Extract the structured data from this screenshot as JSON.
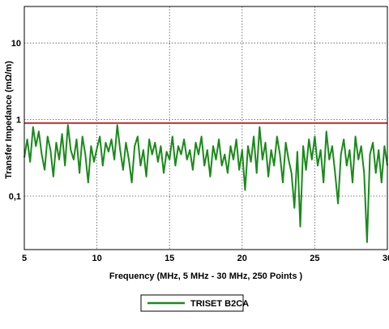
{
  "chart_data": {
    "type": "line",
    "xlabel": "Frequency (MHz, 5 MHz - 30 MHz, 250 Points )",
    "ylabel": "Transfer Impedance (mΩ/m)",
    "xlim": [
      5,
      30
    ],
    "ylim": [
      0.02,
      30
    ],
    "yscale": "log",
    "grid": true,
    "legend_position": "bottom-center",
    "x_ticks": [
      5,
      10,
      15,
      20,
      25,
      30
    ],
    "x_tick_labels": [
      "5",
      "10",
      "15",
      "20",
      "25",
      "30"
    ],
    "y_ticks": [
      0.1,
      1,
      10
    ],
    "y_tick_labels": [
      "0,1",
      "1",
      "10"
    ],
    "reference_line": {
      "y": 0.9,
      "color": "#d12a2a"
    },
    "series": [
      {
        "name": "TRISET B2CA",
        "color": "#1a8a1a",
        "x": [
          5.0,
          5.2,
          5.4,
          5.6,
          5.8,
          6.0,
          6.2,
          6.4,
          6.6,
          6.8,
          7.0,
          7.2,
          7.4,
          7.6,
          7.8,
          8.0,
          8.2,
          8.4,
          8.6,
          8.8,
          9.0,
          9.2,
          9.4,
          9.6,
          9.8,
          10.0,
          10.2,
          10.4,
          10.6,
          10.8,
          11.0,
          11.2,
          11.4,
          11.6,
          11.8,
          12.0,
          12.2,
          12.4,
          12.6,
          12.8,
          13.0,
          13.2,
          13.4,
          13.6,
          13.8,
          14.0,
          14.2,
          14.4,
          14.6,
          14.8,
          15.0,
          15.2,
          15.4,
          15.6,
          15.8,
          16.0,
          16.2,
          16.4,
          16.6,
          16.8,
          17.0,
          17.2,
          17.4,
          17.6,
          17.8,
          18.0,
          18.2,
          18.4,
          18.6,
          18.8,
          19.0,
          19.2,
          19.4,
          19.6,
          19.8,
          20.0,
          20.2,
          20.4,
          20.6,
          20.8,
          21.0,
          21.2,
          21.4,
          21.6,
          21.8,
          22.0,
          22.2,
          22.4,
          22.6,
          22.8,
          23.0,
          23.2,
          23.4,
          23.6,
          23.8,
          24.0,
          24.2,
          24.4,
          24.6,
          24.8,
          25.0,
          25.2,
          25.4,
          25.6,
          25.8,
          26.0,
          26.2,
          26.4,
          26.6,
          26.8,
          27.0,
          27.2,
          27.4,
          27.6,
          27.8,
          28.0,
          28.2,
          28.4,
          28.6,
          28.8,
          29.0,
          29.2,
          29.4,
          29.6,
          29.8,
          30.0
        ],
        "values": [
          0.32,
          0.55,
          0.28,
          0.8,
          0.45,
          0.7,
          0.35,
          0.22,
          0.6,
          0.4,
          0.18,
          0.5,
          0.3,
          0.65,
          0.25,
          0.85,
          0.4,
          0.3,
          0.55,
          0.2,
          0.6,
          0.35,
          0.15,
          0.45,
          0.28,
          0.42,
          0.6,
          0.25,
          0.5,
          0.38,
          0.55,
          0.3,
          0.85,
          0.4,
          0.22,
          0.5,
          0.3,
          0.15,
          0.45,
          0.6,
          0.25,
          0.4,
          0.18,
          0.55,
          0.35,
          0.5,
          0.28,
          0.45,
          0.2,
          0.38,
          0.3,
          0.6,
          0.25,
          0.45,
          0.35,
          0.55,
          0.3,
          0.4,
          0.22,
          0.5,
          0.35,
          0.6,
          0.25,
          0.4,
          0.18,
          0.45,
          0.3,
          0.55,
          0.25,
          0.35,
          0.2,
          0.45,
          0.3,
          0.55,
          0.22,
          0.4,
          0.12,
          0.45,
          0.28,
          0.6,
          0.2,
          0.8,
          0.3,
          0.5,
          0.18,
          0.4,
          0.25,
          0.6,
          0.35,
          0.15,
          0.5,
          0.3,
          0.2,
          0.07,
          0.38,
          0.04,
          0.45,
          0.22,
          0.55,
          0.3,
          0.6,
          0.25,
          0.4,
          0.15,
          0.7,
          0.3,
          0.45,
          0.2,
          0.08,
          0.35,
          0.55,
          0.25,
          0.4,
          0.15,
          0.6,
          0.3,
          0.45,
          0.2,
          0.025,
          0.35,
          0.5,
          0.2,
          0.4,
          0.15,
          0.45,
          0.25
        ]
      }
    ]
  }
}
